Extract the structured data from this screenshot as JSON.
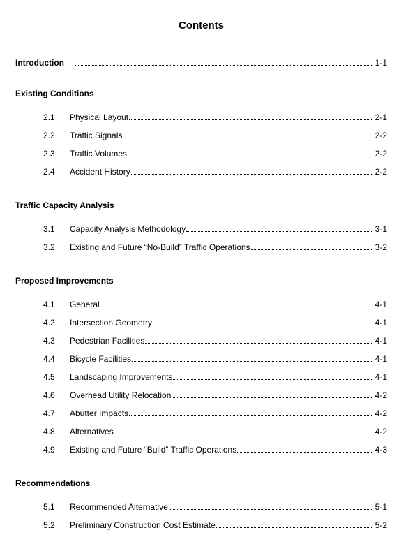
{
  "title": "Contents",
  "colors": {
    "text": "#000000",
    "background": "#ffffff"
  },
  "typography": {
    "title_fontsize": 15,
    "heading_fontsize": 12,
    "row_fontsize": 12,
    "font_family": "Arial"
  },
  "sections": [
    {
      "heading": "Introduction",
      "inline": true,
      "page": "1-1",
      "items": []
    },
    {
      "heading": "Existing Conditions",
      "inline": false,
      "items": [
        {
          "num": "2.1",
          "title": "Physical Layout",
          "page": "2-1"
        },
        {
          "num": "2.2",
          "title": "Traffic Signals",
          "page": "2-2"
        },
        {
          "num": "2.3",
          "title": "Traffic Volumes",
          "page": "2-2"
        },
        {
          "num": "2.4",
          "title": "Accident History",
          "page": "2-2"
        }
      ]
    },
    {
      "heading": "Traffic Capacity Analysis",
      "inline": false,
      "items": [
        {
          "num": "3.1",
          "title": "Capacity Analysis Methodology",
          "page": "3-1"
        },
        {
          "num": "3.2",
          "title": "Existing and Future “No-Build” Traffic Operations",
          "page": "3-2"
        }
      ]
    },
    {
      "heading": "Proposed Improvements",
      "inline": false,
      "items": [
        {
          "num": "4.1",
          "title": "General",
          "page": "4-1"
        },
        {
          "num": "4.2",
          "title": "Intersection Geometry",
          "page": "4-1"
        },
        {
          "num": "4.3",
          "title": "Pedestrian Facilities",
          "page": "4-1"
        },
        {
          "num": "4.4",
          "title": "Bicycle Facilities",
          "page": "4-1"
        },
        {
          "num": "4.5",
          "title": "Landscaping Improvements",
          "page": "4-1"
        },
        {
          "num": "4.6",
          "title": "Overhead Utility Relocation",
          "page": "4-2"
        },
        {
          "num": "4.7",
          "title": "Abutter Impacts",
          "page": "4-2"
        },
        {
          "num": "4.8",
          "title": "Alternatives",
          "page": "4-2"
        },
        {
          "num": "4.9",
          "title": "Existing and Future “Build” Traffic Operations",
          "page": "4-3"
        }
      ]
    },
    {
      "heading": "Recommendations",
      "inline": false,
      "items": [
        {
          "num": "5.1",
          "title": "Recommended Alternative",
          "page": "5-1"
        },
        {
          "num": "5.2",
          "title": "Preliminary Construction Cost Estimate",
          "page": "5-2"
        }
      ]
    }
  ]
}
